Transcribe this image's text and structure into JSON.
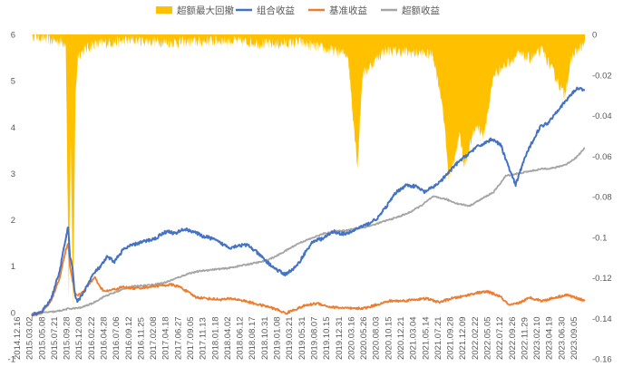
{
  "chart_data": {
    "type": "line",
    "title": "",
    "legend": [
      {
        "name": "超额最大回撤",
        "kind": "area",
        "color": "#FFC000"
      },
      {
        "name": "组合收益",
        "kind": "line",
        "color": "#4472C4"
      },
      {
        "name": "基准收益",
        "kind": "line",
        "color": "#ED7D31"
      },
      {
        "name": "超额收益",
        "kind": "line",
        "color": "#A5A5A5"
      }
    ],
    "legend_position": "top-center",
    "left_axis": {
      "min": -1,
      "max": 6,
      "ticks": [
        "-1",
        "0",
        "1",
        "2",
        "3",
        "4",
        "5",
        "6"
      ],
      "tick_values": [
        -1,
        0,
        1,
        2,
        3,
        4,
        5,
        6
      ]
    },
    "right_axis": {
      "min": -0.16,
      "max": 0,
      "ticks": [
        "0",
        "-0.02",
        "-0.04",
        "-0.06",
        "-0.08",
        "-0.1",
        "-0.12",
        "-0.14",
        "-0.16"
      ],
      "tick_values": [
        0,
        -0.02,
        -0.04,
        -0.06,
        -0.08,
        -0.1,
        -0.12,
        -0.14,
        -0.16
      ]
    },
    "x_tick_labels": [
      "2014.12.16",
      "2015.03.02",
      "2015.05.08",
      "2015.07.21",
      "2015.09.28",
      "2015.12.09",
      "2016.02.22",
      "2016.04.28",
      "2016.07.06",
      "2016.09.12",
      "2016.11.25",
      "2017.02.08",
      "2017.04.18",
      "2017.06.27",
      "2017.09.05",
      "2017.11.13",
      "2018.01.18",
      "2018.04.02",
      "2018.06.12",
      "2018.08.17",
      "2018.10.31",
      "2019.01.08",
      "2019.03.21",
      "2019.05.31",
      "2019.08.07",
      "2019.10.15",
      "2019.12.31",
      "2020.03.16",
      "2020.05.26",
      "2020.08.03",
      "2020.10.15",
      "2020.12.21",
      "2021.03.04",
      "2021.05.14",
      "2021.07.21",
      "2021.09.28",
      "2021.12.09",
      "2022.02.22",
      "2022.05.05",
      "2022.07.12",
      "2022.09.26",
      "2022.11.29",
      "2023.02.10",
      "2023.04.19",
      "2023.06.30",
      "2023.09.05"
    ],
    "series_keypoints": {
      "组合收益": [
        [
          0,
          -0.05
        ],
        [
          0.8,
          0.0
        ],
        [
          1.6,
          0.3
        ],
        [
          2.3,
          0.9
        ],
        [
          2.8,
          1.6
        ],
        [
          3.0,
          1.85
        ],
        [
          3.15,
          1.2
        ],
        [
          3.35,
          0.95
        ],
        [
          3.5,
          0.5
        ],
        [
          3.6,
          0.35
        ],
        [
          3.75,
          0.25
        ],
        [
          3.95,
          0.3
        ],
        [
          4.2,
          0.4
        ],
        [
          4.6,
          0.6
        ],
        [
          5.0,
          0.8
        ],
        [
          5.3,
          0.9
        ],
        [
          5.7,
          1.0
        ],
        [
          6.2,
          1.2
        ],
        [
          6.8,
          1.1
        ],
        [
          7.5,
          1.35
        ],
        [
          8.2,
          1.45
        ],
        [
          8.8,
          1.5
        ],
        [
          9.5,
          1.55
        ],
        [
          10.2,
          1.6
        ],
        [
          10.8,
          1.72
        ],
        [
          11.3,
          1.75
        ],
        [
          11.8,
          1.7
        ],
        [
          12.5,
          1.8
        ],
        [
          13.3,
          1.75
        ],
        [
          14.0,
          1.65
        ],
        [
          14.8,
          1.6
        ],
        [
          15.5,
          1.5
        ],
        [
          16.3,
          1.4
        ],
        [
          17.0,
          1.45
        ],
        [
          17.8,
          1.45
        ],
        [
          18.5,
          1.3
        ],
        [
          19.3,
          1.1
        ],
        [
          20.0,
          0.95
        ],
        [
          20.8,
          0.82
        ],
        [
          21.3,
          0.9
        ],
        [
          21.8,
          1.0
        ],
        [
          22.5,
          1.3
        ],
        [
          23.2,
          1.55
        ],
        [
          24.0,
          1.6
        ],
        [
          24.8,
          1.75
        ],
        [
          25.5,
          1.7
        ],
        [
          26.0,
          1.7
        ],
        [
          26.8,
          1.82
        ],
        [
          27.6,
          1.9
        ],
        [
          28.5,
          2.05
        ],
        [
          29.2,
          2.3
        ],
        [
          30.0,
          2.6
        ],
        [
          30.8,
          2.75
        ],
        [
          31.6,
          2.72
        ],
        [
          32.3,
          2.6
        ],
        [
          33.0,
          2.7
        ],
        [
          33.7,
          2.85
        ],
        [
          34.4,
          3.05
        ],
        [
          35.1,
          3.25
        ],
        [
          35.8,
          3.4
        ],
        [
          36.5,
          3.55
        ],
        [
          37.2,
          3.65
        ],
        [
          37.9,
          3.75
        ],
        [
          38.6,
          3.6
        ],
        [
          39.2,
          3.15
        ],
        [
          39.8,
          2.75
        ],
        [
          40.5,
          3.3
        ],
        [
          41.2,
          3.7
        ],
        [
          41.8,
          4.0
        ],
        [
          42.5,
          4.1
        ],
        [
          43.2,
          4.35
        ],
        [
          43.9,
          4.55
        ],
        [
          44.5,
          4.75
        ],
        [
          45.0,
          4.85
        ],
        [
          45.5,
          4.8
        ]
      ],
      "基准收益": [
        [
          0,
          -0.05
        ],
        [
          0.8,
          0.0
        ],
        [
          1.6,
          0.25
        ],
        [
          2.3,
          0.75
        ],
        [
          2.8,
          1.35
        ],
        [
          3.0,
          1.5
        ],
        [
          3.15,
          1.0
        ],
        [
          3.35,
          0.7
        ],
        [
          3.55,
          0.45
        ],
        [
          3.75,
          0.35
        ],
        [
          4.2,
          0.45
        ],
        [
          4.8,
          0.65
        ],
        [
          5.2,
          0.75
        ],
        [
          5.6,
          0.55
        ],
        [
          6.0,
          0.45
        ],
        [
          6.8,
          0.5
        ],
        [
          7.5,
          0.55
        ],
        [
          8.5,
          0.52
        ],
        [
          9.5,
          0.55
        ],
        [
          10.5,
          0.58
        ],
        [
          11.5,
          0.6
        ],
        [
          12.2,
          0.55
        ],
        [
          12.8,
          0.45
        ],
        [
          13.5,
          0.33
        ],
        [
          14.5,
          0.3
        ],
        [
          15.5,
          0.28
        ],
        [
          16.5,
          0.3
        ],
        [
          17.5,
          0.25
        ],
        [
          18.5,
          0.18
        ],
        [
          19.5,
          0.12
        ],
        [
          20.3,
          0.05
        ],
        [
          20.9,
          -0.02
        ],
        [
          21.5,
          0.05
        ],
        [
          22.5,
          0.15
        ],
        [
          23.5,
          0.2
        ],
        [
          24.5,
          0.12
        ],
        [
          25.5,
          0.1
        ],
        [
          26.5,
          0.08
        ],
        [
          27.5,
          0.1
        ],
        [
          28.5,
          0.18
        ],
        [
          29.5,
          0.25
        ],
        [
          30.5,
          0.25
        ],
        [
          31.5,
          0.28
        ],
        [
          32.5,
          0.3
        ],
        [
          33.5,
          0.22
        ],
        [
          34.5,
          0.3
        ],
        [
          35.5,
          0.35
        ],
        [
          36.5,
          0.42
        ],
        [
          37.5,
          0.45
        ],
        [
          38.5,
          0.35
        ],
        [
          39.3,
          0.15
        ],
        [
          40.0,
          0.2
        ],
        [
          41.0,
          0.32
        ],
        [
          42.0,
          0.25
        ],
        [
          43.0,
          0.32
        ],
        [
          44.0,
          0.38
        ],
        [
          45.0,
          0.3
        ],
        [
          45.5,
          0.25
        ]
      ],
      "超额收益": [
        [
          0,
          -0.05
        ],
        [
          1.0,
          0.0
        ],
        [
          2.0,
          0.02
        ],
        [
          3.0,
          0.08
        ],
        [
          4.0,
          0.1
        ],
        [
          5.0,
          0.2
        ],
        [
          6.0,
          0.35
        ],
        [
          7.0,
          0.45
        ],
        [
          8.0,
          0.55
        ],
        [
          9.0,
          0.58
        ],
        [
          10.0,
          0.6
        ],
        [
          11.0,
          0.65
        ],
        [
          12.0,
          0.75
        ],
        [
          13.0,
          0.85
        ],
        [
          14.0,
          0.9
        ],
        [
          15.0,
          0.93
        ],
        [
          16.0,
          0.95
        ],
        [
          17.0,
          1.0
        ],
        [
          18.0,
          1.05
        ],
        [
          19.0,
          1.1
        ],
        [
          20.0,
          1.2
        ],
        [
          21.0,
          1.35
        ],
        [
          22.0,
          1.5
        ],
        [
          23.0,
          1.6
        ],
        [
          24.0,
          1.7
        ],
        [
          25.0,
          1.75
        ],
        [
          26.0,
          1.78
        ],
        [
          27.0,
          1.82
        ],
        [
          28.0,
          1.88
        ],
        [
          29.0,
          1.97
        ],
        [
          30.0,
          2.05
        ],
        [
          31.0,
          2.15
        ],
        [
          32.0,
          2.3
        ],
        [
          33.0,
          2.5
        ],
        [
          34.0,
          2.45
        ],
        [
          35.0,
          2.35
        ],
        [
          36.0,
          2.3
        ],
        [
          37.0,
          2.45
        ],
        [
          38.0,
          2.6
        ],
        [
          39.0,
          2.95
        ],
        [
          40.0,
          3.0
        ],
        [
          41.0,
          3.05
        ],
        [
          42.0,
          3.1
        ],
        [
          43.0,
          3.12
        ],
        [
          44.0,
          3.2
        ],
        [
          44.8,
          3.35
        ],
        [
          45.5,
          3.55
        ]
      ],
      "超额最大回撤": [
        [
          0,
          0
        ],
        [
          1.5,
          -0.003
        ],
        [
          2.8,
          -0.004
        ],
        [
          3.05,
          -0.13
        ],
        [
          3.2,
          -0.05
        ],
        [
          3.4,
          -0.136
        ],
        [
          3.6,
          -0.03
        ],
        [
          3.8,
          -0.01
        ],
        [
          5,
          -0.005
        ],
        [
          8,
          -0.003
        ],
        [
          12,
          -0.004
        ],
        [
          16,
          -0.003
        ],
        [
          20,
          -0.005
        ],
        [
          22,
          -0.004
        ],
        [
          26,
          -0.01
        ],
        [
          26.5,
          -0.045
        ],
        [
          26.8,
          -0.065
        ],
        [
          27.2,
          -0.02
        ],
        [
          29,
          -0.008
        ],
        [
          33,
          -0.01
        ],
        [
          33.8,
          -0.035
        ],
        [
          34.3,
          -0.07
        ],
        [
          34.8,
          -0.06
        ],
        [
          35.2,
          -0.05
        ],
        [
          35.6,
          -0.065
        ],
        [
          36.0,
          -0.055
        ],
        [
          36.6,
          -0.045
        ],
        [
          37.2,
          -0.05
        ],
        [
          38.0,
          -0.02
        ],
        [
          39.0,
          -0.015
        ],
        [
          40.0,
          -0.01
        ],
        [
          41.0,
          -0.012
        ],
        [
          42.0,
          -0.008
        ],
        [
          43.0,
          -0.02
        ],
        [
          43.8,
          -0.03
        ],
        [
          44.5,
          -0.01
        ],
        [
          45.5,
          -0.005
        ]
      ]
    }
  }
}
